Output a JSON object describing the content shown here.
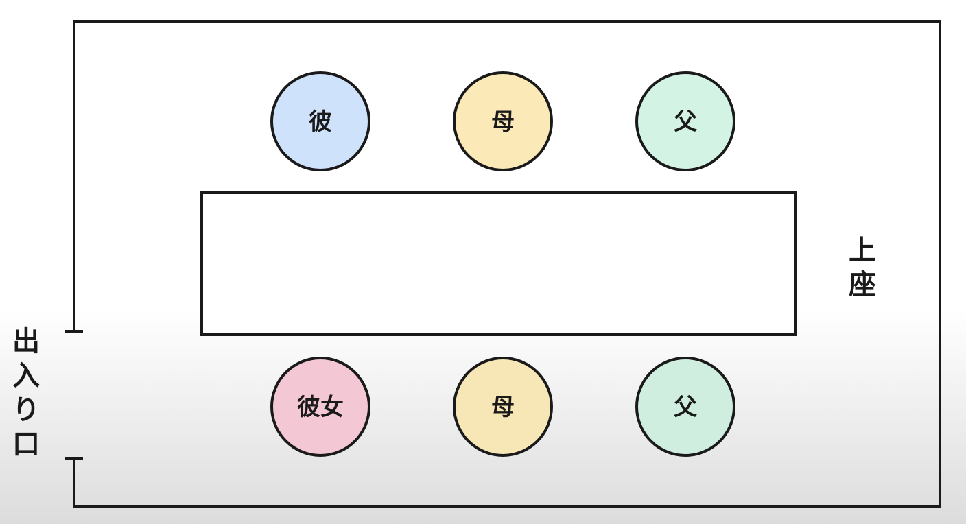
{
  "seats_top": [
    {
      "label": "彼",
      "color": "#cfe2fb"
    },
    {
      "label": "母",
      "color": "#fbe9b8"
    },
    {
      "label": "父",
      "color": "#d3f3e4"
    }
  ],
  "seats_bottom": [
    {
      "label": "彼女",
      "color": "#f4c7d4"
    },
    {
      "label": "母",
      "color": "#f7e6b6"
    },
    {
      "label": "父",
      "color": "#cfeee0"
    }
  ],
  "seat_of_honor_label": [
    "上",
    "座"
  ],
  "entrance_label": [
    "出",
    "入",
    "り",
    "口"
  ],
  "colors": {
    "stroke": "#1a1a1a",
    "table_fill": "#ffffff"
  }
}
